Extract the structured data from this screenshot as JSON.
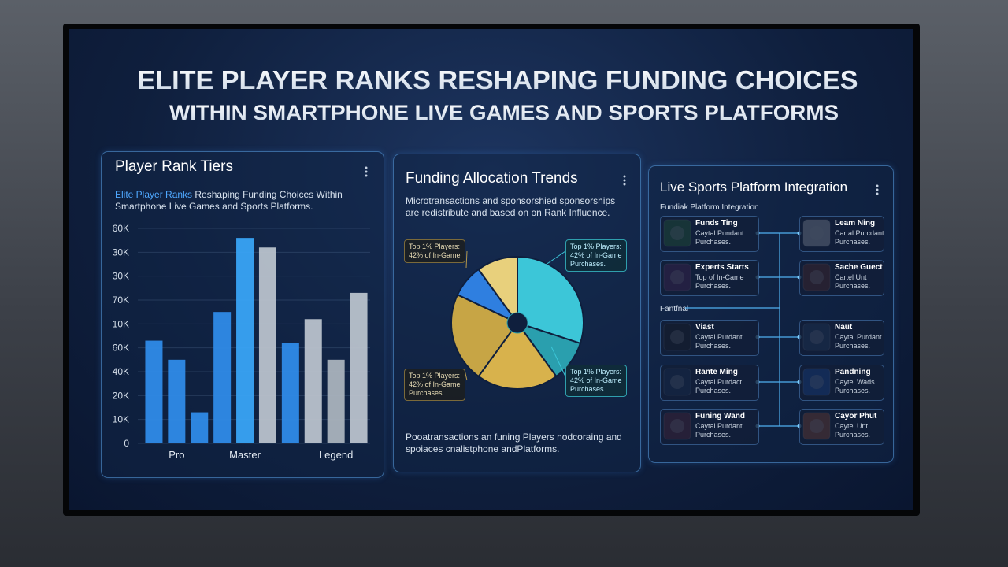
{
  "title": [
    "ELITE PLAYER RANKS RESHAPING FUNDING CHOICES",
    "WITHIN SMARTPHONE LIVE GAMES AND SPORTS PLATFORMS"
  ],
  "panels": [
    {
      "title": "Player Rank Tiers",
      "subtitle_highlight": "Elite Player Ranks",
      "subtitle": "Reshaping Funding Choices Within Smartphone Live Games and Sports Platforms."
    },
    {
      "title": "Funding Allocation Trends",
      "description": "Microtransactions and sponsorshied sponsorships are redistribute and based on on Rank Influence.",
      "footer": "Pooatransactions an funing Players nodcoraing and spoiaces cnalistphone andPlatforms."
    },
    {
      "title": "Live Sports Platform Integration",
      "subtitle": "Fundiak Platform Integration",
      "side_label": "Fantfnal",
      "left_items": [
        {
          "name": "Funds Ting",
          "desc": [
            "Caytal Pundant",
            "Purchases."
          ]
        },
        {
          "name": "Experts Starts",
          "desc": [
            "Top of In-Came",
            "Purchases."
          ]
        },
        {
          "name": "Viast",
          "desc": [
            "Caytal Purdant",
            "Purchases."
          ]
        },
        {
          "name": "Rante Ming",
          "desc": [
            "Caytal Purdact",
            "Purchases."
          ]
        },
        {
          "name": "Funing Wand",
          "desc": [
            "Caytal Purdant",
            "Purchases."
          ]
        }
      ],
      "right_items": [
        {
          "name": "Leam Ning",
          "desc": [
            "Cartal Purcdant",
            "Purchases."
          ]
        },
        {
          "name": "Sache Guect",
          "desc": [
            "Cartel Unt",
            "Purchases."
          ]
        },
        {
          "name": "Naut",
          "desc": [
            "Caytal Purdant",
            "Purchases."
          ]
        },
        {
          "name": "Pandning",
          "desc": [
            "Caytel Wads",
            "Purchases."
          ]
        },
        {
          "name": "Cayor Phut",
          "desc": [
            "Caytel Unt",
            "Purchases."
          ]
        }
      ]
    }
  ],
  "chart_data": [
    {
      "type": "bar",
      "categories": [
        null,
        "Pro",
        null,
        null,
        "Master",
        null,
        null,
        null,
        "Legend",
        null
      ],
      "values": [
        4.3,
        3.5,
        1.3,
        5.5,
        8.6,
        8.2,
        4.2,
        5.2,
        3.5,
        6.3
      ],
      "colors": [
        "#2f8be8",
        "#2f8be8",
        "#2f8be8",
        "#2f8be8",
        "#39a4f5",
        "#b9c2cc",
        "#2f8be8",
        "#b9c2cc",
        "#aab3bd",
        "#b9c2cc"
      ],
      "ylim": [
        0,
        9
      ],
      "yticks": [
        0,
        {
          "value": 1,
          "label": "10K"
        },
        {
          "value": 2,
          "label": "20K"
        },
        {
          "value": 3,
          "label": "40K"
        },
        {
          "value": 4,
          "label": "60K"
        },
        {
          "value": 5,
          "label": "10K"
        },
        {
          "value": 6,
          "label": "70K"
        },
        {
          "value": 7,
          "label": "30K"
        },
        {
          "value": 8,
          "label": "30K"
        },
        {
          "value": 9,
          "label": "60K"
        }
      ],
      "grid": true
    },
    {
      "type": "pie",
      "values": [
        30,
        10,
        20,
        22,
        8,
        10
      ],
      "colors": [
        "#3cc6d8",
        "#2a9fae",
        "#d8b24c",
        "#c7a545",
        "#2f7fe0",
        "#e8d07c"
      ],
      "callouts": [
        {
          "lines": [
            "Top 1% Players:",
            "42% of In-Game"
          ]
        },
        {
          "lines": [
            "Top 1% Players:",
            "42% of In-Game",
            "Purchases."
          ]
        },
        {
          "lines": [
            "Top 1% Players:",
            "42% of In-Game",
            "Purchases."
          ]
        },
        {
          "lines": [
            "Top 1% Players:",
            "42% of In-Game",
            "Purchases."
          ]
        }
      ]
    }
  ]
}
